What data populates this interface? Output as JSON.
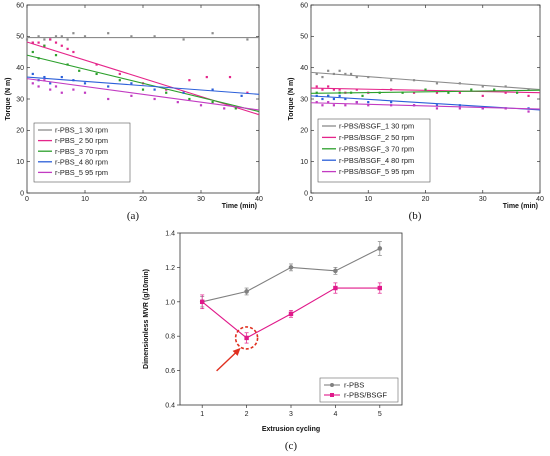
{
  "chart_data": [
    {
      "type": "scatter",
      "panel_label": "(a)",
      "xlabel": "Time (min)",
      "ylabel": "Torque (N m)",
      "xlim": [
        0,
        40
      ],
      "ylim": [
        0,
        60
      ],
      "xticks": [
        "0",
        "10",
        "20",
        "30",
        "40"
      ],
      "yticks": [
        "0",
        "10",
        "20",
        "30",
        "40",
        "50",
        "60"
      ],
      "legend_position": "bottom-left",
      "series": [
        {
          "name": "r-PBS_1 30 rpm",
          "color": "#8c8c8c",
          "fit": [
            [
              0,
              49.6
            ],
            [
              40,
              49.6
            ]
          ],
          "x": [
            0,
            1,
            2,
            3,
            4,
            5,
            6,
            7,
            8,
            10,
            14,
            18,
            22,
            27,
            32,
            38
          ],
          "y": [
            49,
            48,
            50,
            49,
            49,
            50,
            50,
            49,
            51,
            50,
            51,
            50,
            50,
            49,
            51,
            49
          ]
        },
        {
          "name": "r-PBS_2 50 rpm",
          "color": "#e5258a",
          "fit": [
            [
              0,
              48.2
            ],
            [
              40,
              25.0
            ]
          ],
          "x": [
            1,
            2,
            3,
            4,
            5,
            6,
            7,
            8,
            12,
            16,
            20,
            24,
            28,
            31,
            35,
            38
          ],
          "y": [
            48,
            48,
            47,
            49,
            48,
            47,
            46,
            45,
            41,
            38,
            35,
            33,
            36,
            37,
            37,
            32
          ]
        },
        {
          "name": "r-PBS_3 70 rpm",
          "color": "#2ca02c",
          "fit": [
            [
              0,
              44.0
            ],
            [
              40,
              26.0
            ]
          ],
          "x": [
            1,
            2,
            3,
            5,
            7,
            9,
            12,
            16,
            20,
            24,
            28,
            32,
            36
          ],
          "y": [
            45,
            43,
            47,
            44,
            41,
            39,
            38,
            36,
            33,
            32,
            30,
            29,
            27
          ]
        },
        {
          "name": "r-PBS_4 80 rpm",
          "color": "#2b5fd9",
          "fit": [
            [
              0,
              37.0
            ],
            [
              40,
              31.5
            ]
          ],
          "x": [
            1,
            2,
            3,
            4,
            6,
            8,
            10,
            14,
            18,
            22,
            27,
            32,
            37
          ],
          "y": [
            38,
            36,
            37,
            35,
            37,
            36,
            35,
            34,
            35,
            33,
            32,
            33,
            31
          ]
        },
        {
          "name": "r-PBS_5 95 rpm",
          "color": "#c23bc2",
          "fit": [
            [
              0,
              36.5
            ],
            [
              40,
              26.5
            ]
          ],
          "x": [
            1,
            2,
            3,
            4,
            5,
            6,
            8,
            10,
            14,
            18,
            22,
            26,
            30,
            34
          ],
          "y": [
            35,
            34,
            36,
            33,
            34,
            32,
            33,
            32,
            30,
            31,
            30,
            29,
            28,
            27
          ]
        }
      ]
    },
    {
      "type": "scatter",
      "panel_label": "(b)",
      "xlabel": "Time (min)",
      "ylabel": "Torque (N m)",
      "xlim": [
        0,
        40
      ],
      "ylim": [
        0,
        60
      ],
      "xticks": [
        "0",
        "10",
        "20",
        "30",
        "40"
      ],
      "yticks": [
        "0",
        "10",
        "20",
        "30",
        "40",
        "50",
        "60"
      ],
      "legend_position": "bottom-left",
      "series": [
        {
          "name": "r-PBS/BSGF_1 30 rpm",
          "color": "#8c8c8c",
          "fit": [
            [
              0,
              38.5
            ],
            [
              40,
              33.0
            ]
          ],
          "x": [
            1,
            2,
            3,
            4,
            5,
            6,
            7,
            8,
            10,
            14,
            18,
            22,
            26,
            30,
            34,
            38
          ],
          "y": [
            38,
            37,
            39,
            38,
            39,
            38,
            38,
            37,
            37,
            36,
            36,
            35,
            35,
            34,
            34,
            33
          ]
        },
        {
          "name": "r-PBS/BSGF_2 50 rpm",
          "color": "#e5258a",
          "fit": [
            [
              0,
              33.5
            ],
            [
              40,
              32.0
            ]
          ],
          "x": [
            1,
            2,
            3,
            4,
            5,
            6,
            8,
            10,
            14,
            18,
            22,
            26,
            30,
            34,
            38
          ],
          "y": [
            34,
            33,
            34,
            33,
            33,
            32,
            33,
            32,
            33,
            32,
            32,
            32,
            31,
            32,
            31
          ]
        },
        {
          "name": "r-PBS/BSGF_3 70 rpm",
          "color": "#2ca02c",
          "fit": [
            [
              0,
              31.8
            ],
            [
              40,
              32.8
            ]
          ],
          "x": [
            1,
            3,
            5,
            7,
            9,
            12,
            16,
            20,
            24,
            28,
            32,
            36
          ],
          "y": [
            32,
            31,
            32,
            32,
            31,
            32,
            32,
            33,
            32,
            33,
            33,
            32
          ]
        },
        {
          "name": "r-PBS/BSGF_4 80 rpm",
          "color": "#2b5fd9",
          "fit": [
            [
              0,
              31.0
            ],
            [
              40,
              26.5
            ]
          ],
          "x": [
            1,
            2,
            3,
            4,
            5,
            6,
            8,
            10,
            14,
            18,
            22,
            26,
            30,
            34,
            38
          ],
          "y": [
            31,
            30,
            31,
            30,
            31,
            30,
            29,
            29,
            29,
            28,
            28,
            28,
            27,
            27,
            27
          ]
        },
        {
          "name": "r-PBS/BSGF_5 95 rpm",
          "color": "#c23bc2",
          "fit": [
            [
              0,
              28.8
            ],
            [
              40,
              26.8
            ]
          ],
          "x": [
            1,
            2,
            3,
            4,
            6,
            8,
            10,
            14,
            18,
            22,
            26,
            30,
            34,
            38
          ],
          "y": [
            29,
            28,
            29,
            28,
            28,
            29,
            28,
            28,
            28,
            27,
            27,
            27,
            27,
            26
          ]
        }
      ]
    },
    {
      "type": "line",
      "panel_label": "(c)",
      "xlabel": "Extrusion cycling",
      "ylabel": "Dimensionless MVR  (g/10min)",
      "xlim": [
        0.5,
        5.5
      ],
      "ylim": [
        0.4,
        1.4
      ],
      "xticks": [
        "1",
        "2",
        "3",
        "4",
        "5"
      ],
      "yticks": [
        "0.4",
        "0.6",
        "0.8",
        "1.0",
        "1.2",
        "1.4"
      ],
      "legend_position": "bottom-right",
      "series": [
        {
          "name": "r-PBS",
          "color": "#808080",
          "marker": "circle",
          "x": [
            1,
            2,
            3,
            4,
            5
          ],
          "y": [
            1.0,
            1.06,
            1.2,
            1.18,
            1.31
          ],
          "err": [
            0.03,
            0.02,
            0.02,
            0.02,
            0.04
          ]
        },
        {
          "name": "r-PBS/BSGF",
          "color": "#e0198a",
          "marker": "square",
          "x": [
            1,
            2,
            3,
            4,
            5
          ],
          "y": [
            1.0,
            0.79,
            0.93,
            1.08,
            1.08
          ],
          "err": [
            0.04,
            0.03,
            0.02,
            0.03,
            0.03
          ]
        }
      ],
      "highlight": {
        "x": 2,
        "y": 0.79,
        "color": "#e03020"
      }
    }
  ]
}
